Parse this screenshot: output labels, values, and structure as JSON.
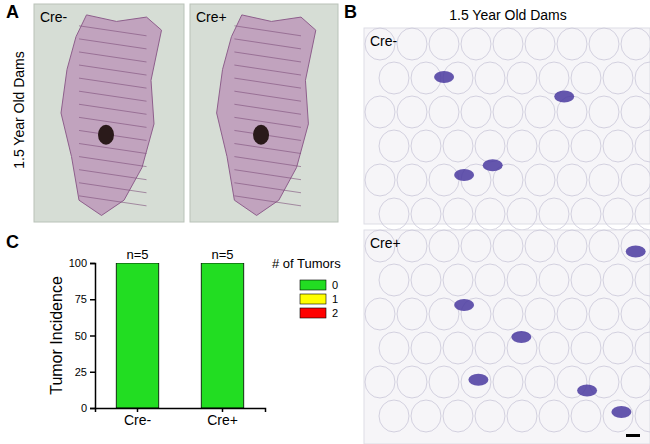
{
  "chart_data": {
    "type": "bar",
    "stacked": true,
    "panel_label": "C",
    "y_label": "Tumor Incidence",
    "categories": [
      "Cre-",
      "Cre+"
    ],
    "annotations": [
      "n=5",
      "n=5"
    ],
    "legend_title": "# of Tumors",
    "series": [
      {
        "name": "0",
        "color": "#22dd22",
        "values": [
          100,
          100
        ]
      },
      {
        "name": "1",
        "color": "#ffff00",
        "values": [
          0,
          0
        ]
      },
      {
        "name": "2",
        "color": "#ff0000",
        "values": [
          0,
          0
        ]
      }
    ],
    "ylim": [
      0,
      100
    ],
    "yticks": [
      0,
      25,
      50,
      75,
      100
    ]
  },
  "figure": {
    "panel_a": {
      "label": "A",
      "side_title": "1.5 Year Old Dams",
      "images": [
        "Cre-",
        "Cre+"
      ]
    },
    "panel_b": {
      "label": "B",
      "title": "1.5 Year Old Dams",
      "images": [
        "Cre-",
        "Cre+"
      ]
    }
  }
}
